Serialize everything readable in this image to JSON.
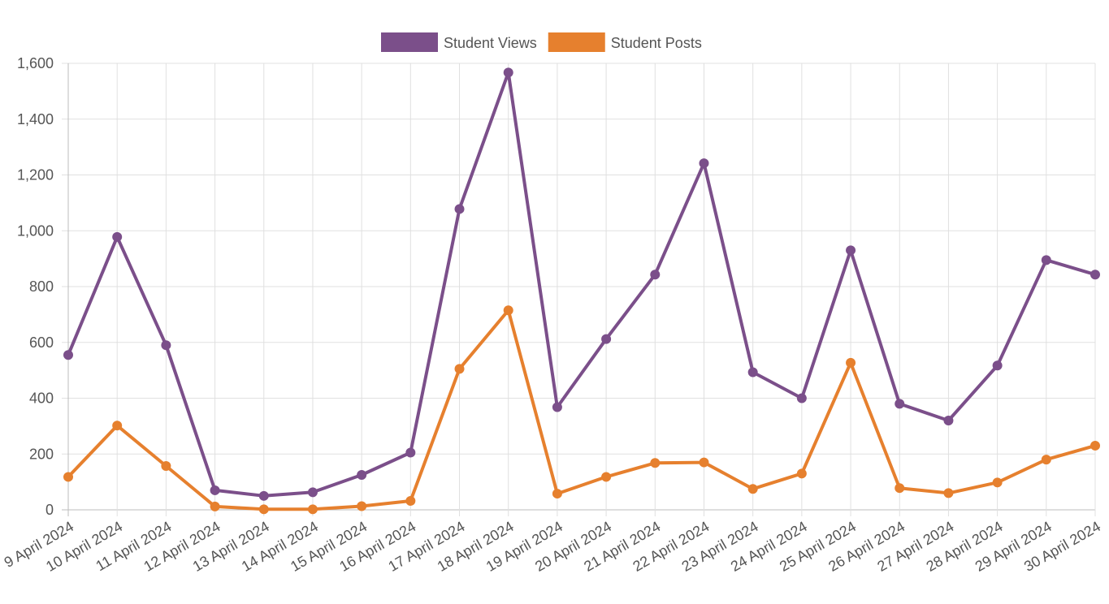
{
  "chart_data": {
    "type": "line",
    "categories": [
      "9 April 2024",
      "10 April 2024",
      "11 April 2024",
      "12 April 2024",
      "13 April 2024",
      "14 April 2024",
      "15 April 2024",
      "16 April 2024",
      "17 April 2024",
      "18 April 2024",
      "19 April 2024",
      "20 April 2024",
      "21 April 2024",
      "22 April 2024",
      "23 April 2024",
      "24 April 2024",
      "25 April 2024",
      "26 April 2024",
      "27 April 2024",
      "28 April 2024",
      "29 April 2024",
      "30 April 2024"
    ],
    "series": [
      {
        "name": "Student Views",
        "color": "#7b4f8a",
        "values": [
          555,
          978,
          590,
          70,
          50,
          63,
          125,
          205,
          1078,
          1567,
          368,
          612,
          843,
          1242,
          493,
          400,
          930,
          380,
          320,
          517,
          895,
          843
        ]
      },
      {
        "name": "Student Posts",
        "color": "#e6802e",
        "values": [
          118,
          302,
          157,
          12,
          2,
          2,
          13,
          32,
          505,
          715,
          58,
          118,
          168,
          170,
          75,
          130,
          527,
          78,
          60,
          98,
          180,
          230
        ]
      }
    ],
    "title": "",
    "xlabel": "",
    "ylabel": "",
    "ylim": [
      0,
      1600
    ],
    "yticks": [
      "0",
      "200",
      "400",
      "600",
      "800",
      "1,000",
      "1,200",
      "1,400",
      "1,600"
    ],
    "ytick_values": [
      0,
      200,
      400,
      600,
      800,
      1000,
      1200,
      1400,
      1600
    ],
    "grid": true,
    "legend_position": "top"
  }
}
